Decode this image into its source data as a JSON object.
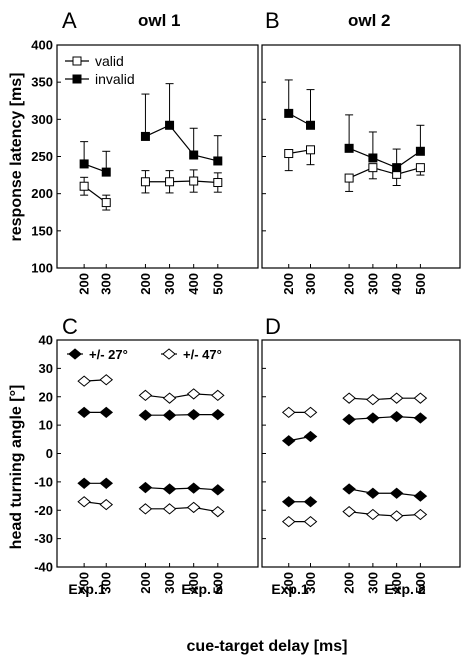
{
  "figure": {
    "owl1_title": "owl 1",
    "owl2_title": "owl 2",
    "xlabel": "cue-target delay [ms]",
    "exp1_label": "Exp.1",
    "exp2_label": "Exp. 2"
  },
  "chart_data": [
    {
      "panel": "A",
      "type": "line",
      "title": "owl 1",
      "ylabel": "response latency [ms]",
      "ylim": [
        100,
        400
      ],
      "yticks": [
        100,
        150,
        200,
        250,
        300,
        350,
        400
      ],
      "x_categories": [
        "200",
        "300",
        "200",
        "300",
        "400",
        "500"
      ],
      "legend": {
        "placement": "top-left",
        "entries": [
          "valid",
          "invalid"
        ]
      },
      "series": [
        {
          "name": "valid",
          "marker": "open-square",
          "segments": [
            {
              "experiment": "Exp.1",
              "x": [
                200,
                300
              ],
              "y": [
                210,
                188
              ],
              "err_low": [
                12,
                10
              ],
              "err_high": [
                12,
                10
              ]
            },
            {
              "experiment": "Exp. 2",
              "x": [
                200,
                300,
                400,
                500
              ],
              "y": [
                216,
                216,
                217,
                215
              ],
              "err_low": [
                15,
                15,
                15,
                13
              ],
              "err_high": [
                15,
                15,
                15,
                13
              ]
            }
          ]
        },
        {
          "name": "invalid",
          "marker": "filled-square",
          "segments": [
            {
              "experiment": "Exp.1",
              "x": [
                200,
                300
              ],
              "y": [
                240,
                229
              ],
              "err_low": [
                0,
                0
              ],
              "err_high": [
                30,
                28
              ]
            },
            {
              "experiment": "Exp. 2",
              "x": [
                200,
                300,
                400,
                500
              ],
              "y": [
                277,
                292,
                252,
                244
              ],
              "err_low": [
                0,
                0,
                0,
                0
              ],
              "err_high": [
                57,
                56,
                36,
                34
              ]
            }
          ]
        }
      ]
    },
    {
      "panel": "B",
      "type": "line",
      "title": "owl 2",
      "ylabel": "response latency [ms]",
      "ylim": [
        100,
        400
      ],
      "yticks": [
        100,
        150,
        200,
        250,
        300,
        350,
        400
      ],
      "x_categories": [
        "200",
        "300",
        "200",
        "300",
        "400",
        "500"
      ],
      "series": [
        {
          "name": "valid",
          "marker": "open-square",
          "segments": [
            {
              "experiment": "Exp.1",
              "x": [
                200,
                300
              ],
              "y": [
                254,
                259
              ],
              "err_low": [
                23,
                20
              ],
              "err_high": [
                0,
                0
              ]
            },
            {
              "experiment": "Exp. 2",
              "x": [
                200,
                300,
                400,
                500
              ],
              "y": [
                221,
                235,
                226,
                235
              ],
              "err_low": [
                18,
                15,
                15,
                10
              ],
              "err_high": [
                0,
                0,
                0,
                0
              ]
            }
          ]
        },
        {
          "name": "invalid",
          "marker": "filled-square",
          "segments": [
            {
              "experiment": "Exp.1",
              "x": [
                200,
                300
              ],
              "y": [
                308,
                292
              ],
              "err_low": [
                0,
                0
              ],
              "err_high": [
                45,
                48
              ]
            },
            {
              "experiment": "Exp. 2",
              "x": [
                200,
                300,
                400,
                500
              ],
              "y": [
                261,
                248,
                235,
                257
              ],
              "err_low": [
                0,
                0,
                0,
                0
              ],
              "err_high": [
                45,
                35,
                25,
                35
              ]
            }
          ]
        }
      ]
    },
    {
      "panel": "C",
      "type": "line",
      "ylabel": "head turning angle [°]",
      "ylim": [
        -40,
        40
      ],
      "yticks": [
        -40,
        -30,
        -20,
        -10,
        0,
        10,
        20,
        30,
        40
      ],
      "x_categories": [
        "200",
        "300",
        "200",
        "300",
        "400",
        "500"
      ],
      "legend": {
        "placement": "top",
        "entries": [
          "+/- 27°",
          "+/- 47°"
        ]
      },
      "series": [
        {
          "name": "+/- 27°",
          "marker": "filled-diamond",
          "segments": [
            {
              "experiment": "Exp.1",
              "x": [
                200,
                300
              ],
              "y": [
                14.5,
                14.5
              ]
            },
            {
              "experiment": "Exp. 2",
              "x": [
                200,
                300,
                400,
                500
              ],
              "y": [
                13.5,
                13.5,
                13.7,
                13.7
              ]
            },
            {
              "experiment": "Exp.1",
              "x": [
                200,
                300
              ],
              "y": [
                -10.5,
                -10.5
              ]
            },
            {
              "experiment": "Exp. 2",
              "x": [
                200,
                300,
                400,
                500
              ],
              "y": [
                -12,
                -12.5,
                -12.2,
                -12.8
              ]
            }
          ]
        },
        {
          "name": "+/- 47°",
          "marker": "open-diamond",
          "segments": [
            {
              "experiment": "Exp.1",
              "x": [
                200,
                300
              ],
              "y": [
                25.5,
                26
              ]
            },
            {
              "experiment": "Exp. 2",
              "x": [
                200,
                300,
                400,
                500
              ],
              "y": [
                20.5,
                19.5,
                21,
                20.5
              ]
            },
            {
              "experiment": "Exp.1",
              "x": [
                200,
                300
              ],
              "y": [
                -17,
                -18
              ]
            },
            {
              "experiment": "Exp. 2",
              "x": [
                200,
                300,
                400,
                500
              ],
              "y": [
                -19.5,
                -19.5,
                -19,
                -20.5
              ]
            }
          ]
        }
      ]
    },
    {
      "panel": "D",
      "type": "line",
      "ylabel": "head turning angle [°]",
      "ylim": [
        -40,
        40
      ],
      "yticks": [
        -40,
        -30,
        -20,
        -10,
        0,
        10,
        20,
        30,
        40
      ],
      "x_categories": [
        "200",
        "300",
        "200",
        "300",
        "400",
        "500"
      ],
      "series": [
        {
          "name": "+/- 27°",
          "marker": "filled-diamond",
          "segments": [
            {
              "experiment": "Exp.1",
              "x": [
                200,
                300
              ],
              "y": [
                4.5,
                6
              ]
            },
            {
              "experiment": "Exp. 2",
              "x": [
                200,
                300,
                400,
                500
              ],
              "y": [
                12,
                12.5,
                13,
                12.5
              ]
            },
            {
              "experiment": "Exp.1",
              "x": [
                200,
                300
              ],
              "y": [
                -17,
                -17
              ]
            },
            {
              "experiment": "Exp. 2",
              "x": [
                200,
                300,
                400,
                500
              ],
              "y": [
                -12.5,
                -14,
                -14,
                -15
              ]
            }
          ]
        },
        {
          "name": "+/- 47°",
          "marker": "open-diamond",
          "segments": [
            {
              "experiment": "Exp.1",
              "x": [
                200,
                300
              ],
              "y": [
                14.5,
                14.5
              ]
            },
            {
              "experiment": "Exp. 2",
              "x": [
                200,
                300,
                400,
                500
              ],
              "y": [
                19.5,
                19,
                19.5,
                19.5
              ]
            },
            {
              "experiment": "Exp.1",
              "x": [
                200,
                300
              ],
              "y": [
                -24,
                -24
              ]
            },
            {
              "experiment": "Exp. 2",
              "x": [
                200,
                300,
                400,
                500
              ],
              "y": [
                -20.5,
                -21.5,
                -22,
                -21.5
              ]
            }
          ]
        }
      ]
    }
  ]
}
